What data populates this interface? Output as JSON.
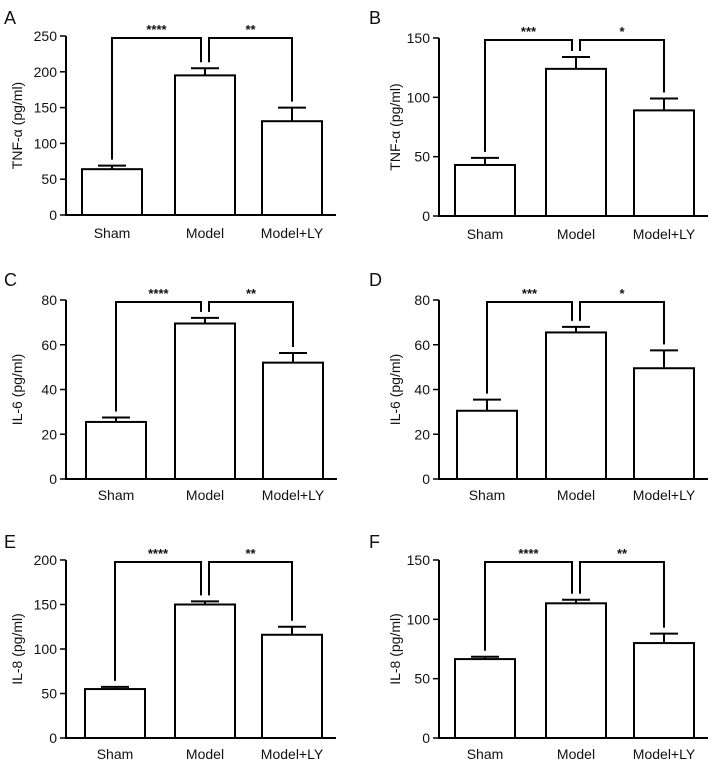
{
  "chart_data": [
    {
      "panel": "A",
      "type": "bar",
      "ylabel": "TNF-α (pg/ml)",
      "categories": [
        "Sham",
        "Model",
        "Model+LY"
      ],
      "values": [
        64,
        195,
        131
      ],
      "errors": [
        5,
        10,
        19
      ],
      "ylim": [
        0,
        250
      ],
      "yticks": [
        0,
        50,
        100,
        150,
        200,
        250
      ],
      "significance": [
        {
          "from": 0,
          "to": 1,
          "label": "****"
        },
        {
          "from": 1,
          "to": 2,
          "label": "**"
        }
      ]
    },
    {
      "panel": "B",
      "type": "bar",
      "ylabel": "TNF-α (pg/ml)",
      "categories": [
        "Sham",
        "Model",
        "Model+LY"
      ],
      "values": [
        43,
        124,
        89
      ],
      "errors": [
        6,
        10,
        10
      ],
      "ylim": [
        0,
        150
      ],
      "yticks": [
        0,
        50,
        100,
        150
      ],
      "significance": [
        {
          "from": 0,
          "to": 1,
          "label": "***"
        },
        {
          "from": 1,
          "to": 2,
          "label": "*"
        }
      ]
    },
    {
      "panel": "C",
      "type": "bar",
      "ylabel": "IL-6 (pg/ml)",
      "categories": [
        "Sham",
        "Model",
        "Model+LY"
      ],
      "values": [
        25.5,
        69.5,
        52
      ],
      "errors": [
        2,
        2.5,
        4.3
      ],
      "ylim": [
        0,
        80
      ],
      "yticks": [
        0,
        20,
        40,
        60,
        80
      ],
      "significance": [
        {
          "from": 0,
          "to": 1,
          "label": "****"
        },
        {
          "from": 1,
          "to": 2,
          "label": "**"
        }
      ]
    },
    {
      "panel": "D",
      "type": "bar",
      "ylabel": "IL-6 (pg/ml)",
      "categories": [
        "Sham",
        "Model",
        "Model+LY"
      ],
      "values": [
        30.5,
        65.5,
        49.5
      ],
      "errors": [
        5,
        2.5,
        8
      ],
      "ylim": [
        0,
        80
      ],
      "yticks": [
        0,
        20,
        40,
        60,
        80
      ],
      "significance": [
        {
          "from": 0,
          "to": 1,
          "label": "***"
        },
        {
          "from": 1,
          "to": 2,
          "label": "*"
        }
      ]
    },
    {
      "panel": "E",
      "type": "bar",
      "ylabel": "IL-8 (pg/ml)",
      "categories": [
        "Sham",
        "Model",
        "Model+LY"
      ],
      "values": [
        55,
        150,
        116
      ],
      "errors": [
        2.5,
        3.5,
        9
      ],
      "ylim": [
        0,
        200
      ],
      "yticks": [
        0,
        50,
        100,
        150,
        200
      ],
      "significance": [
        {
          "from": 0,
          "to": 1,
          "label": "****"
        },
        {
          "from": 1,
          "to": 2,
          "label": "**"
        }
      ]
    },
    {
      "panel": "F",
      "type": "bar",
      "ylabel": "IL-8 (pg/ml)",
      "categories": [
        "Sham",
        "Model",
        "Model+LY"
      ],
      "values": [
        66.5,
        113.5,
        80
      ],
      "errors": [
        2,
        3,
        8
      ],
      "ylim": [
        0,
        150
      ],
      "yticks": [
        0,
        50,
        100,
        150
      ],
      "significance": [
        {
          "from": 0,
          "to": 1,
          "label": "****"
        },
        {
          "from": 1,
          "to": 2,
          "label": "**"
        }
      ]
    }
  ]
}
